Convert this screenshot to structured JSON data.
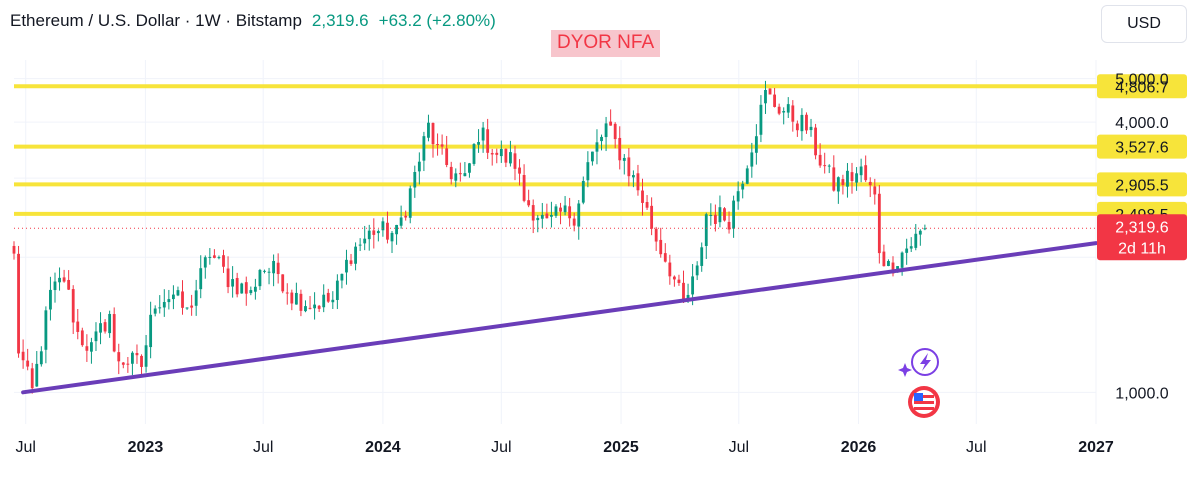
{
  "header": {
    "symbol": "Ethereum / U.S. Dollar · 1W · Bitstamp",
    "price": "2,319.6",
    "change": "+63.2 (+2.80%)"
  },
  "annotation": "DYOR NFA",
  "currency_button": "USD",
  "colors": {
    "up": "#089981",
    "down": "#f23645",
    "level_line": "#f7e43a",
    "trendline": "#6a3db8",
    "current_price": "#f23645"
  },
  "chart_data": {
    "type": "candlestick",
    "y_scale": "log",
    "ylim": [
      850,
      5500
    ],
    "x_range": [
      "2022-06-13",
      "2027-01-01"
    ],
    "y_ticks": [
      "5,000.0",
      "4,000.0",
      "1,000.0"
    ],
    "x_ticks": [
      {
        "label": "Jul",
        "date": "2022-07-01",
        "bold": false
      },
      {
        "label": "2023",
        "date": "2023-01-01",
        "bold": true
      },
      {
        "label": "Jul",
        "date": "2023-07-01",
        "bold": false
      },
      {
        "label": "2024",
        "date": "2024-01-01",
        "bold": true
      },
      {
        "label": "Jul",
        "date": "2024-07-01",
        "bold": false
      },
      {
        "label": "2025",
        "date": "2025-01-01",
        "bold": true
      },
      {
        "label": "Jul",
        "date": "2025-07-01",
        "bold": false
      },
      {
        "label": "2026",
        "date": "2026-01-01",
        "bold": true
      },
      {
        "label": "Jul",
        "date": "2026-07-01",
        "bold": false
      },
      {
        "label": "2027",
        "date": "2027-01-01",
        "bold": true
      }
    ],
    "horizontal_levels": [
      {
        "value": 4806.7,
        "label": "4,806.7"
      },
      {
        "value": 3527.6,
        "label": "3,527.6"
      },
      {
        "value": 2905.5,
        "label": "2,905.5"
      },
      {
        "value": 2498.5,
        "label": "2,498.5"
      }
    ],
    "trendline": {
      "start": {
        "date": "2022-06-27",
        "value": 1000
      },
      "end": {
        "date": "2027-01-01",
        "value": 2150
      }
    },
    "current_price": {
      "value": 2319.6,
      "label": "2,319.6",
      "countdown": "2d 11h"
    },
    "candle_anchors": [
      [
        "2022-06-13",
        2000
      ],
      [
        "2022-06-20",
        1250
      ],
      [
        "2022-07-11",
        1000
      ],
      [
        "2022-08-08",
        1650
      ],
      [
        "2022-08-29",
        1800
      ],
      [
        "2022-09-19",
        1350
      ],
      [
        "2022-10-10",
        1250
      ],
      [
        "2022-11-07",
        1500
      ],
      [
        "2022-11-14",
        1200
      ],
      [
        "2022-12-26",
        1150
      ],
      [
        "2023-01-16",
        1600
      ],
      [
        "2023-02-13",
        1650
      ],
      [
        "2023-03-06",
        1500
      ],
      [
        "2023-04-10",
        2050
      ],
      [
        "2023-05-08",
        1800
      ],
      [
        "2023-06-12",
        1650
      ],
      [
        "2023-06-26",
        1900
      ],
      [
        "2023-07-24",
        1850
      ],
      [
        "2023-08-14",
        1650
      ],
      [
        "2023-09-11",
        1580
      ],
      [
        "2023-10-16",
        1600
      ],
      [
        "2023-11-13",
        2050
      ],
      [
        "2023-12-18",
        2300
      ],
      [
        "2024-01-22",
        2250
      ],
      [
        "2024-02-12",
        2800
      ],
      [
        "2024-03-11",
        3900
      ],
      [
        "2024-03-25",
        3450
      ],
      [
        "2024-04-15",
        3100
      ],
      [
        "2024-05-06",
        2950
      ],
      [
        "2024-05-27",
        3800
      ],
      [
        "2024-06-24",
        3400
      ],
      [
        "2024-07-22",
        3250
      ],
      [
        "2024-08-05",
        2700
      ],
      [
        "2024-08-26",
        2500
      ],
      [
        "2024-09-09",
        2350
      ],
      [
        "2024-09-30",
        2500
      ],
      [
        "2024-10-21",
        2500
      ],
      [
        "2024-11-11",
        3200
      ],
      [
        "2024-12-09",
        3900
      ],
      [
        "2025-01-06",
        3300
      ],
      [
        "2025-02-03",
        2700
      ],
      [
        "2025-02-24",
        2200
      ],
      [
        "2025-03-17",
        1900
      ],
      [
        "2025-04-07",
        1550
      ],
      [
        "2025-04-28",
        1850
      ],
      [
        "2025-05-12",
        2500
      ],
      [
        "2025-06-16",
        2450
      ],
      [
        "2025-07-14",
        3300
      ],
      [
        "2025-08-11",
        4600
      ],
      [
        "2025-08-25",
        4400
      ],
      [
        "2025-09-22",
        4100
      ],
      [
        "2025-10-13",
        3900
      ],
      [
        "2025-11-03",
        3300
      ],
      [
        "2025-11-24",
        2900
      ],
      [
        "2025-12-15",
        3000
      ],
      [
        "2026-01-05",
        3100
      ],
      [
        "2026-01-26",
        2700
      ],
      [
        "2026-02-02",
        2100
      ],
      [
        "2026-02-16",
        1900
      ],
      [
        "2026-03-02",
        2000
      ],
      [
        "2026-03-16",
        2100
      ],
      [
        "2026-04-06",
        2256
      ],
      [
        "2026-04-13",
        2319.6
      ]
    ]
  }
}
